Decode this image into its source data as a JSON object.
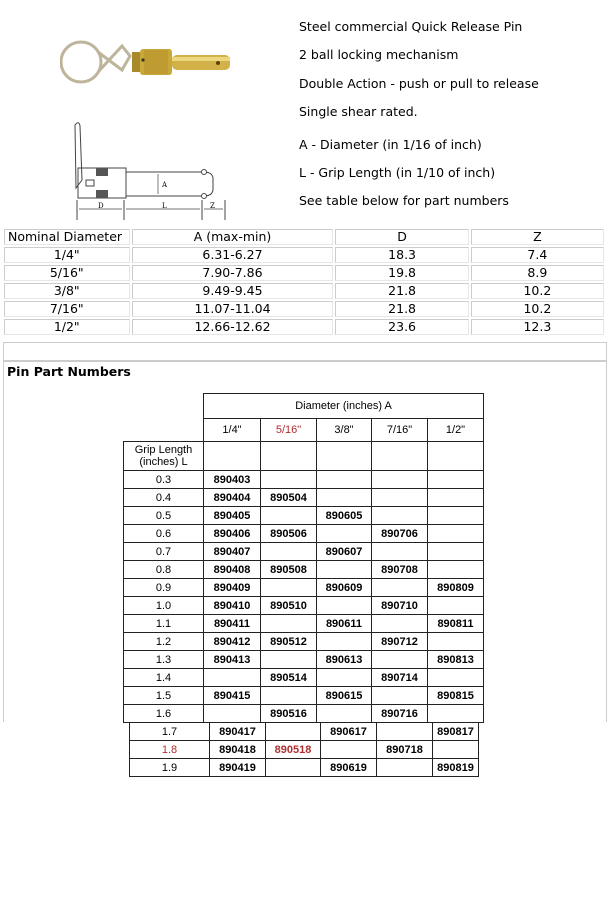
{
  "description": [
    "Steel commercial Quick Release Pin",
    "2 ball locking mechanism",
    "Double Action - push or pull to release",
    "Single shear rated.",
    "A - Diameter (in 1/16 of inch)",
    "L - Grip Length (in 1/10 of inch)",
    "See table below for part numbers"
  ],
  "diagram_labels": {
    "d": "D",
    "l": "L",
    "z": "Z",
    "a": "A"
  },
  "spec_table": {
    "headers": [
      "Nominal Diameter",
      "A (max-min)",
      "D",
      "Z"
    ],
    "rows": [
      [
        "1/4\"",
        "6.31-6.27",
        "18.3",
        "7.4"
      ],
      [
        "5/16\"",
        "7.90-7.86",
        "19.8",
        "8.9"
      ],
      [
        "3/8\"",
        "9.49-9.45",
        "21.8",
        "10.2"
      ],
      [
        "7/16\"",
        "11.07-11.04",
        "21.8",
        "10.2"
      ],
      [
        "1/2\"",
        "12.66-12.62",
        "23.6",
        "12.3"
      ]
    ]
  },
  "pin_section_title": "Pin Part Numbers",
  "pin_table": {
    "group_header": "Diameter (inches) A",
    "row_header": "Grip Length (inches) L",
    "diameters": [
      "1/4\"",
      "5/16\"",
      "3/8\"",
      "7/16\"",
      "1/2\""
    ],
    "highlight_color": "#b03030",
    "highlight_diameter": "5/16\"",
    "highlight_length": "1.8",
    "rows": [
      [
        "0.3",
        "890403",
        "",
        "",
        "",
        ""
      ],
      [
        "0.4",
        "890404",
        "890504",
        "",
        "",
        ""
      ],
      [
        "0.5",
        "890405",
        "",
        "890605",
        "",
        ""
      ],
      [
        "0.6",
        "890406",
        "890506",
        "",
        "890706",
        ""
      ],
      [
        "0.7",
        "890407",
        "",
        "890607",
        "",
        ""
      ],
      [
        "0.8",
        "890408",
        "890508",
        "",
        "890708",
        ""
      ],
      [
        "0.9",
        "890409",
        "",
        "890609",
        "",
        "890809"
      ],
      [
        "1.0",
        "890410",
        "890510",
        "",
        "890710",
        ""
      ],
      [
        "1.1",
        "890411",
        "",
        "890611",
        "",
        "890811"
      ],
      [
        "1.2",
        "890412",
        "890512",
        "",
        "890712",
        ""
      ],
      [
        "1.3",
        "890413",
        "",
        "890613",
        "",
        "890813"
      ],
      [
        "1.4",
        "",
        "890514",
        "",
        "890714",
        ""
      ],
      [
        "1.5",
        "890415",
        "",
        "890615",
        "",
        "890815"
      ],
      [
        "1.6",
        "",
        "890516",
        "",
        "890716",
        ""
      ],
      [
        "1.7",
        "890417",
        "",
        "890617",
        "",
        "890817"
      ],
      [
        "1.8",
        "890418",
        "890518",
        "",
        "890718",
        ""
      ],
      [
        "1.9",
        "890419",
        "",
        "890619",
        "",
        "890819"
      ]
    ]
  }
}
